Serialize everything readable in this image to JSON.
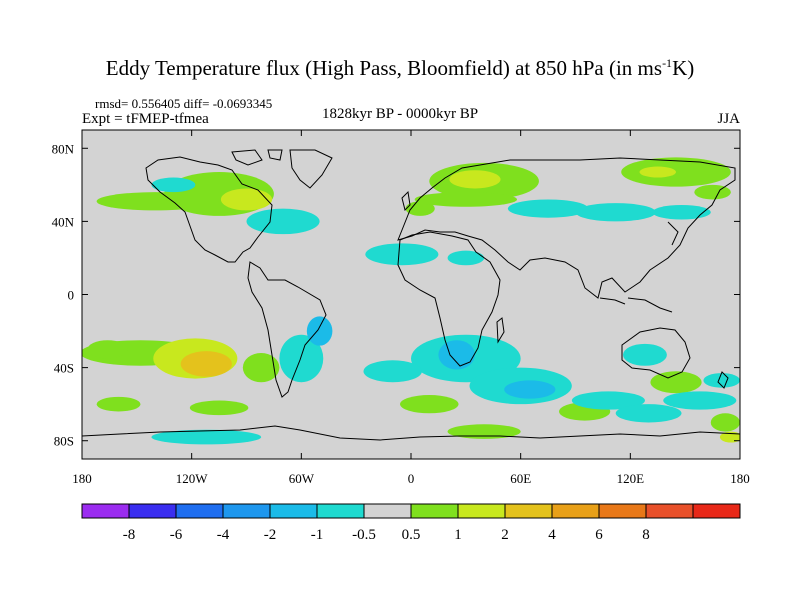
{
  "title": {
    "main": "Eddy Temperature flux (High Pass, Bloomfield) at 850 hPa (in ms",
    "sup": "-1",
    "tail": "K)"
  },
  "stats": "rmsd= 0.556405 diff= -0.0693345",
  "expt": "Expt = tFMEP-tfmea",
  "period": "1828kyr BP - 0000kyr BP",
  "season": "JJA",
  "map": {
    "lon_range": [
      -180,
      180
    ],
    "lat_range": [
      -90,
      90
    ],
    "background_color": "#d3d3d3",
    "coastline_color": "#000000",
    "x_ticks": [
      {
        "value": -180,
        "label": "180"
      },
      {
        "value": -120,
        "label": "120W"
      },
      {
        "value": -60,
        "label": "60W"
      },
      {
        "value": 0,
        "label": "0"
      },
      {
        "value": 60,
        "label": "60E"
      },
      {
        "value": 120,
        "label": "120E"
      },
      {
        "value": 180,
        "label": "180"
      }
    ],
    "y_ticks": [
      {
        "value": 80,
        "label": "80N"
      },
      {
        "value": 40,
        "label": "40N"
      },
      {
        "value": 0,
        "label": "0"
      },
      {
        "value": -40,
        "label": "40S"
      },
      {
        "value": -80,
        "label": "80S"
      }
    ],
    "anomalies": [
      {
        "lon": -148,
        "lat": -32,
        "rx": 33,
        "ry": 7,
        "level": 0.7
      },
      {
        "lon": -118,
        "lat": -35,
        "rx": 23,
        "ry": 11,
        "level": 1.4
      },
      {
        "lon": -112,
        "lat": -38,
        "rx": 14,
        "ry": 7,
        "level": 2.2
      },
      {
        "lon": -166,
        "lat": -30,
        "rx": 11,
        "ry": 5,
        "level": 0.7
      },
      {
        "lon": -160,
        "lat": -60,
        "rx": 12,
        "ry": 4,
        "level": 0.7
      },
      {
        "lon": -82,
        "lat": -40,
        "rx": 10,
        "ry": 8,
        "level": 0.7
      },
      {
        "lon": -105,
        "lat": -62,
        "rx": 16,
        "ry": 4,
        "level": 0.7
      },
      {
        "lon": -60,
        "lat": -35,
        "rx": 12,
        "ry": 13,
        "level": -0.7
      },
      {
        "lon": -50,
        "lat": -20,
        "rx": 7,
        "ry": 8,
        "level": -1.4
      },
      {
        "lon": -112,
        "lat": -78,
        "rx": 30,
        "ry": 4,
        "level": -0.7
      },
      {
        "lon": 10,
        "lat": -60,
        "rx": 16,
        "ry": 5,
        "level": 0.7
      },
      {
        "lon": 40,
        "lat": -75,
        "rx": 20,
        "ry": 4,
        "level": 0.7
      },
      {
        "lon": 95,
        "lat": -64,
        "rx": 14,
        "ry": 5,
        "level": 0.7
      },
      {
        "lon": 145,
        "lat": -48,
        "rx": 14,
        "ry": 6,
        "level": 0.7
      },
      {
        "lon": 172,
        "lat": -70,
        "rx": 8,
        "ry": 5,
        "level": 0.7
      },
      {
        "lon": 175,
        "lat": -78,
        "rx": 6,
        "ry": 3,
        "level": 1.4
      },
      {
        "lon": 30,
        "lat": -35,
        "rx": 30,
        "ry": 13,
        "level": -0.7
      },
      {
        "lon": 25,
        "lat": -33,
        "rx": 10,
        "ry": 8,
        "level": -1.4
      },
      {
        "lon": 60,
        "lat": -50,
        "rx": 28,
        "ry": 10,
        "level": -0.7
      },
      {
        "lon": 65,
        "lat": -52,
        "rx": 14,
        "ry": 5,
        "level": -1.4
      },
      {
        "lon": -10,
        "lat": -42,
        "rx": 16,
        "ry": 6,
        "level": -0.7
      },
      {
        "lon": 108,
        "lat": -58,
        "rx": 20,
        "ry": 5,
        "level": -0.7
      },
      {
        "lon": 130,
        "lat": -65,
        "rx": 18,
        "ry": 5,
        "level": -0.7
      },
      {
        "lon": 158,
        "lat": -58,
        "rx": 20,
        "ry": 5,
        "level": -0.7
      },
      {
        "lon": 128,
        "lat": -33,
        "rx": 12,
        "ry": 6,
        "level": -0.7
      },
      {
        "lon": 170,
        "lat": -47,
        "rx": 10,
        "ry": 4,
        "level": -0.7
      },
      {
        "lon": -140,
        "lat": 51,
        "rx": 32,
        "ry": 5,
        "level": 0.7
      },
      {
        "lon": -105,
        "lat": 55,
        "rx": 30,
        "ry": 12,
        "level": 0.7
      },
      {
        "lon": -90,
        "lat": 52,
        "rx": 14,
        "ry": 6,
        "level": 1.4
      },
      {
        "lon": -130,
        "lat": 60,
        "rx": 12,
        "ry": 4,
        "level": -0.7
      },
      {
        "lon": -70,
        "lat": 40,
        "rx": 20,
        "ry": 7,
        "level": -0.7
      },
      {
        "lon": -5,
        "lat": 22,
        "rx": 20,
        "ry": 6,
        "level": -0.7
      },
      {
        "lon": 30,
        "lat": 20,
        "rx": 10,
        "ry": 4,
        "level": -0.7
      },
      {
        "lon": 5,
        "lat": 47,
        "rx": 8,
        "ry": 4,
        "level": 0.7
      },
      {
        "lon": 40,
        "lat": 62,
        "rx": 30,
        "ry": 10,
        "level": 0.7
      },
      {
        "lon": 35,
        "lat": 63,
        "rx": 14,
        "ry": 5,
        "level": 1.4
      },
      {
        "lon": 30,
        "lat": 52,
        "rx": 28,
        "ry": 4,
        "level": 0.7
      },
      {
        "lon": 75,
        "lat": 47,
        "rx": 22,
        "ry": 5,
        "level": -0.7
      },
      {
        "lon": 112,
        "lat": 45,
        "rx": 22,
        "ry": 5,
        "level": -0.7
      },
      {
        "lon": 148,
        "lat": 45,
        "rx": 16,
        "ry": 4,
        "level": -0.7
      },
      {
        "lon": 145,
        "lat": 67,
        "rx": 30,
        "ry": 8,
        "level": 0.7
      },
      {
        "lon": 135,
        "lat": 67,
        "rx": 10,
        "ry": 3,
        "level": 1.4
      },
      {
        "lon": 165,
        "lat": 56,
        "rx": 10,
        "ry": 4,
        "level": 0.7
      }
    ]
  },
  "colorbar": {
    "colors": [
      "#9b2cf0",
      "#3a2ef0",
      "#1f6ef0",
      "#1e97ee",
      "#1bbbe8",
      "#1fdad0",
      "#d3d3d3",
      "#7fe01e",
      "#c8e81e",
      "#e4c21c",
      "#e8a018",
      "#e87818",
      "#e8502a",
      "#e82818"
    ],
    "labels": [
      "-8",
      "-6",
      "-4",
      "-2",
      "-1",
      "-0.5",
      "0.5",
      "1",
      "2",
      "4",
      "6",
      "8"
    ]
  }
}
